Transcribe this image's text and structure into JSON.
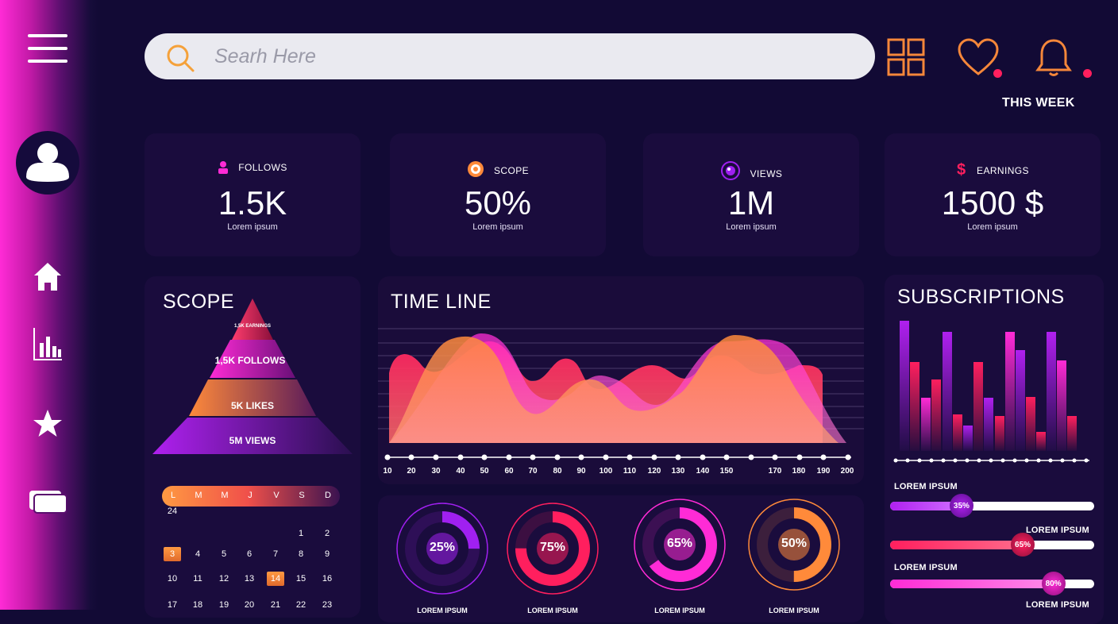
{
  "search": {
    "placeholder": "Searh Here"
  },
  "header": {
    "this_week": "THIS WEEK"
  },
  "stats": [
    {
      "label": "FOLLOWS",
      "value": "1.5K",
      "sub": "Lorem ipsum"
    },
    {
      "label": "SCOPE",
      "value": "50%",
      "sub": "Lorem ipsum"
    },
    {
      "label": "VIEWS",
      "value": "1M",
      "sub": "Lorem ipsum"
    },
    {
      "label": "EARNINGS",
      "value": "1500 $",
      "sub": "Lorem ipsum"
    }
  ],
  "scope": {
    "title": "SCOPE",
    "levels": [
      "1,5K EARNINGS",
      "1,5K FOLLOWS",
      "5K LIKES",
      "5M VIEWS"
    ]
  },
  "calendar": {
    "days": [
      "L",
      "M",
      "M",
      "J",
      "V",
      "S",
      "D"
    ],
    "highlighted": [
      3,
      14
    ]
  },
  "timeline": {
    "title": "TIME LINE",
    "ticks": [
      "10",
      "20",
      "30",
      "40",
      "50",
      "60",
      "70",
      "80",
      "90",
      "100",
      "110",
      "120",
      "130",
      "140",
      "150",
      "170",
      "180",
      "190",
      "200"
    ]
  },
  "rings": [
    {
      "value": "25%",
      "percent": 25,
      "label": "LOREM IPSUM",
      "color": "#a020f0"
    },
    {
      "value": "75%",
      "percent": 75,
      "label": "LOREM IPSUM",
      "color": "#ff1f5e"
    },
    {
      "value": "65%",
      "percent": 65,
      "label": "LOREM IPSUM",
      "color": "#ff2bd6"
    },
    {
      "value": "50%",
      "percent": 50,
      "label": "LOREM IPSUM",
      "color": "#ff8a3a"
    }
  ],
  "subscriptions": {
    "title": "SUBSCRIPTIONS",
    "sliders": [
      {
        "label": "LOREM IPSUM",
        "value": "35%",
        "percent": 35
      },
      {
        "label": "LOREM IPSUM",
        "value": "65%",
        "percent": 65
      },
      {
        "label": "LOREM IPSUM",
        "value": "80%",
        "percent": 80
      }
    ],
    "bottom_label": "LOREM IPSUM"
  },
  "colors": {
    "accent_pink": "#ff2bd6",
    "accent_orange": "#ff8a3a",
    "accent_red": "#ff1f5e",
    "accent_purple": "#a020f0",
    "background": "#120a35"
  },
  "icons": [
    "menu-icon",
    "user-icon",
    "home-icon",
    "chart-icon",
    "star-icon",
    "cards-icon",
    "search-icon",
    "grid-icon",
    "heart-icon",
    "bell-icon"
  ]
}
